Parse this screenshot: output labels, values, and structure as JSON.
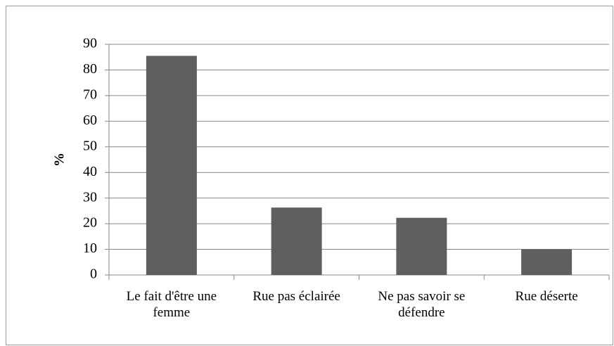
{
  "chart_data": {
    "type": "bar",
    "y_label": "%",
    "categories": [
      "Le fait d'être une femme",
      "Rue pas éclairée",
      "Ne pas savoir se défendre",
      "Rue déserte"
    ],
    "values": [
      85.5,
      26.3,
      22.3,
      10
    ],
    "color": "#5f5f5f",
    "ylim": [
      0,
      90
    ],
    "yticks": [
      0,
      10,
      20,
      30,
      40,
      50,
      60,
      70,
      80,
      90
    ],
    "grid": true
  }
}
